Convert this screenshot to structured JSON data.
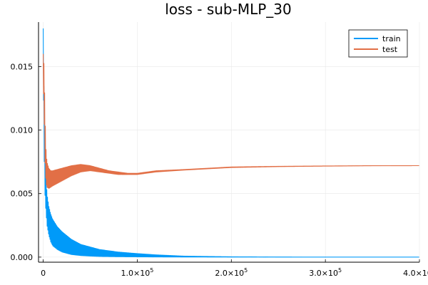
{
  "chart_data": {
    "type": "line",
    "title": "loss - sub-MLP_30",
    "xlabel": "",
    "ylabel": "",
    "xlim": [
      -5000,
      400000
    ],
    "ylim": [
      -0.0004,
      0.0185
    ],
    "x_ticks": [
      {
        "value": 0,
        "label": "0",
        "exp": ""
      },
      {
        "value": 100000,
        "label": "1.0×10",
        "exp": "5"
      },
      {
        "value": 200000,
        "label": "2.0×10",
        "exp": "5"
      },
      {
        "value": 300000,
        "label": "3.0×10",
        "exp": "5"
      },
      {
        "value": 400000,
        "label": "4.0×10",
        "exp": "5"
      }
    ],
    "y_ticks": [
      {
        "value": 0.0,
        "label": "0.000"
      },
      {
        "value": 0.005,
        "label": "0.005"
      },
      {
        "value": 0.01,
        "label": "0.010"
      },
      {
        "value": 0.015,
        "label": "0.015"
      }
    ],
    "grid": true,
    "legend_position": "top-right",
    "series": [
      {
        "name": "train",
        "color": "#009af9",
        "x": [
          0,
          1000,
          2000,
          4000,
          6000,
          8000,
          10000,
          15000,
          20000,
          30000,
          40000,
          50000,
          60000,
          80000,
          100000,
          120000,
          150000,
          200000,
          250000,
          300000,
          350000,
          400000
        ],
        "upper": [
          0.018,
          0.012,
          0.008,
          0.005,
          0.004,
          0.0034,
          0.003,
          0.0024,
          0.002,
          0.0014,
          0.001,
          0.0008,
          0.0006,
          0.0004,
          0.00028,
          0.00018,
          8e-05,
          3e-05,
          1e-05,
          5e-06,
          3e-06,
          2e-06
        ],
        "lower": [
          0.015,
          0.008,
          0.0045,
          0.0025,
          0.0017,
          0.0012,
          0.0009,
          0.0006,
          0.0004,
          0.0002,
          0.00012,
          8e-05,
          5e-05,
          3e-05,
          2e-05,
          1e-05,
          5e-06,
          2e-06,
          1e-06,
          0.0,
          0.0,
          0.0
        ]
      },
      {
        "name": "test",
        "color": "#e26f46",
        "x": [
          0,
          1000,
          2000,
          3000,
          4000,
          6000,
          8000,
          10000,
          15000,
          20000,
          30000,
          40000,
          50000,
          60000,
          70000,
          80000,
          90000,
          100000,
          120000,
          150000,
          200000,
          250000,
          300000,
          350000,
          400000
        ],
        "upper": [
          0.016,
          0.015,
          0.011,
          0.0085,
          0.0075,
          0.007,
          0.0068,
          0.0068,
          0.0069,
          0.007,
          0.0072,
          0.0073,
          0.0072,
          0.007,
          0.0068,
          0.0067,
          0.0066,
          0.0066,
          0.0068,
          0.0069,
          0.0071,
          0.00715,
          0.00718,
          0.0072,
          0.0072
        ],
        "lower": [
          0.014,
          0.011,
          0.007,
          0.0058,
          0.0055,
          0.0054,
          0.0055,
          0.0056,
          0.0058,
          0.006,
          0.0064,
          0.0067,
          0.0068,
          0.0067,
          0.0066,
          0.0065,
          0.0065,
          0.0065,
          0.0067,
          0.00685,
          0.00705,
          0.00712,
          0.00716,
          0.00719,
          0.0072
        ]
      }
    ]
  }
}
